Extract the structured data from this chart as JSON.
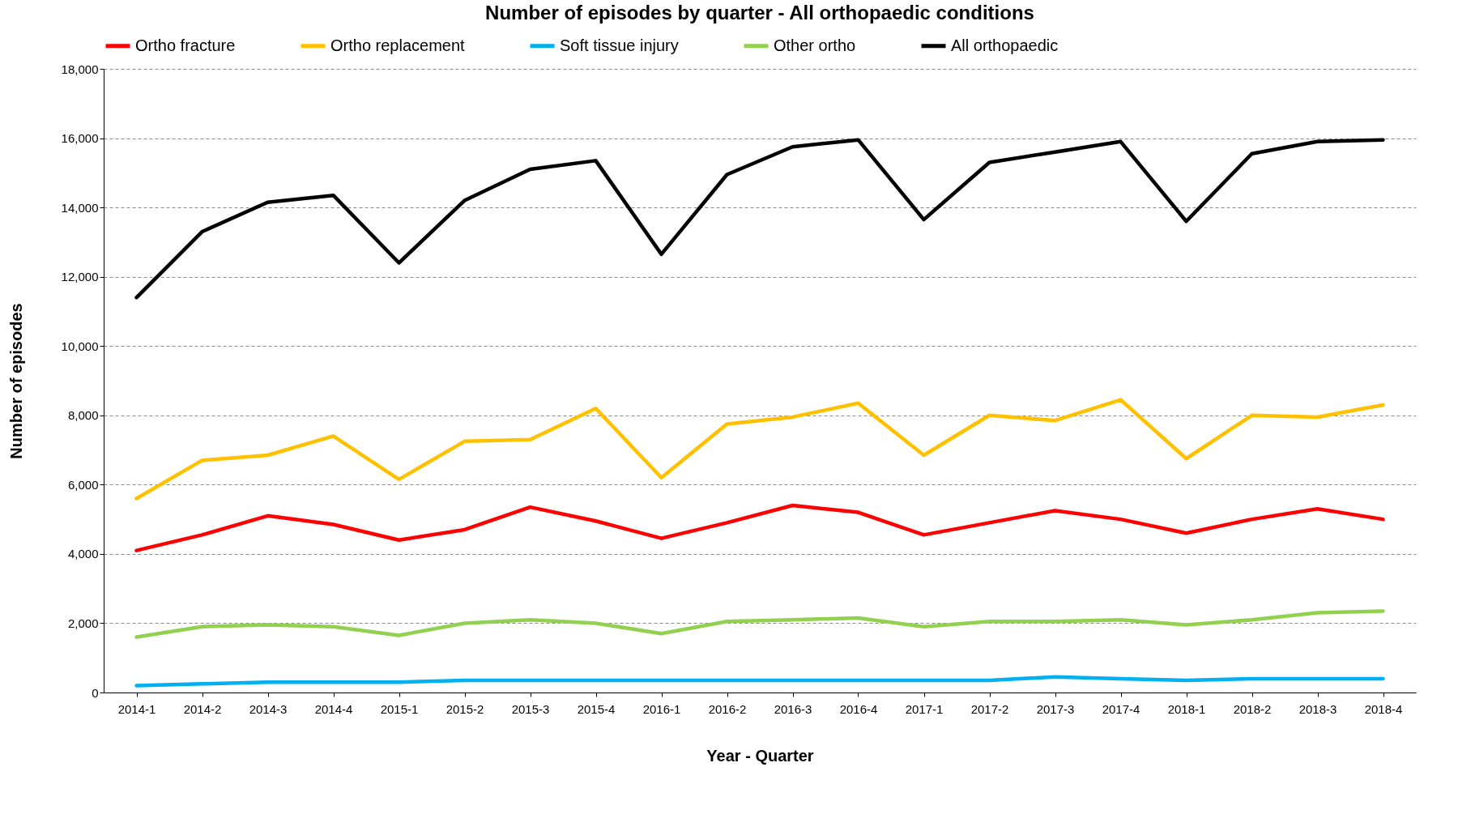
{
  "chart_data": {
    "type": "line",
    "title": "Number of episodes by quarter - All orthopaedic conditions",
    "xlabel": "Year - Quarter",
    "ylabel": "Number of episodes",
    "categories": [
      "2014-1",
      "2014-2",
      "2014-3",
      "2014-4",
      "2015-1",
      "2015-2",
      "2015-3",
      "2015-4",
      "2016-1",
      "2016-2",
      "2016-3",
      "2016-4",
      "2017-1",
      "2017-2",
      "2017-3",
      "2017-4",
      "2018-1",
      "2018-2",
      "2018-3",
      "2018-4"
    ],
    "series": [
      {
        "name": "Ortho fracture",
        "color": "#ff0000",
        "values": [
          4100,
          4550,
          5100,
          4850,
          4400,
          4700,
          5350,
          4950,
          4450,
          4900,
          5400,
          5200,
          4550,
          4900,
          5250,
          5000,
          4600,
          5000,
          5300,
          5000
        ]
      },
      {
        "name": "Ortho replacement",
        "color": "#ffc000",
        "values": [
          5600,
          6700,
          6850,
          7400,
          6150,
          7250,
          7300,
          8200,
          6200,
          7750,
          7950,
          8350,
          6850,
          8000,
          7850,
          8450,
          6750,
          8000,
          7950,
          8300
        ]
      },
      {
        "name": "Soft tissue injury",
        "color": "#00b0f0",
        "values": [
          200,
          250,
          300,
          300,
          300,
          350,
          350,
          350,
          350,
          350,
          350,
          350,
          350,
          350,
          450,
          400,
          350,
          400,
          400,
          400
        ]
      },
      {
        "name": "Other ortho",
        "color": "#92d050",
        "values": [
          1600,
          1900,
          1950,
          1900,
          1650,
          2000,
          2100,
          2000,
          1700,
          2050,
          2100,
          2150,
          1900,
          2050,
          2050,
          2100,
          1950,
          2100,
          2300,
          2350
        ]
      },
      {
        "name": "All orthopaedic",
        "color": "#000000",
        "values": [
          11400,
          13300,
          14150,
          14350,
          12400,
          14200,
          15100,
          15350,
          12650,
          14950,
          15750,
          15950,
          13650,
          15300,
          15600,
          15900,
          13600,
          15550,
          15900,
          15950
        ]
      }
    ],
    "ylim": [
      0,
      18000
    ],
    "yticks": [
      {
        "value": 0,
        "label": "0"
      },
      {
        "value": 2000,
        "label": "2,000"
      },
      {
        "value": 4000,
        "label": "4,000"
      },
      {
        "value": 6000,
        "label": "6,000"
      },
      {
        "value": 8000,
        "label": "8,000"
      },
      {
        "value": 10000,
        "label": "10,000"
      },
      {
        "value": 12000,
        "label": "12,000"
      },
      {
        "value": 14000,
        "label": "14,000"
      },
      {
        "value": 16000,
        "label": "16,000"
      },
      {
        "value": 18000,
        "label": "18,000"
      }
    ],
    "grid": "y",
    "legend": "top",
    "line_style": "solid"
  }
}
